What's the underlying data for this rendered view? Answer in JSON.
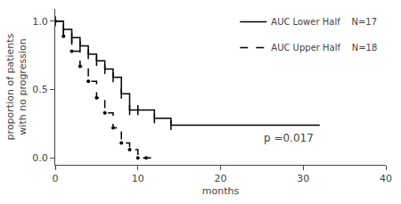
{
  "chart_data": {
    "type": "step",
    "xlabel": "months",
    "ylabel": "proportion of patients\nwith no progression",
    "series": [
      {
        "name": "AUC Lower Half    N=17",
        "color": "#000000",
        "line_style": "solid",
        "marker": "tick",
        "x": [
          0,
          0,
          1,
          2,
          3,
          4,
          5,
          6,
          7,
          8,
          9,
          10,
          12,
          14,
          32
        ],
        "values": [
          1.0,
          1.0,
          0.94,
          0.88,
          0.82,
          0.76,
          0.71,
          0.65,
          0.59,
          0.47,
          0.35,
          0.35,
          0.29,
          0.24,
          0.24
        ]
      },
      {
        "name": "AUC Upper Half    N=18",
        "color": "#000000",
        "line_style": "dashed",
        "marker": "dot",
        "x": [
          0,
          0,
          1,
          2,
          3,
          4,
          5,
          6,
          7,
          8,
          9,
          10,
          11,
          12
        ],
        "values": [
          1.0,
          1.0,
          0.89,
          0.78,
          0.67,
          0.56,
          0.44,
          0.33,
          0.22,
          0.11,
          0.06,
          0.0,
          0.0,
          0.0
        ]
      }
    ],
    "annotations": [
      {
        "text": "p =0.017",
        "x": 25,
        "y": 0.09
      }
    ],
    "xlim": [
      0,
      40
    ],
    "ylim": [
      -0.05,
      1.09
    ],
    "xticks": [
      0,
      10,
      20,
      30,
      40
    ],
    "yticks": [
      {
        "value": 0.0,
        "label": "0.0"
      },
      0.5,
      {
        "value": 1.0,
        "label": "1.0"
      }
    ],
    "grid": false,
    "legend": "upper right"
  }
}
